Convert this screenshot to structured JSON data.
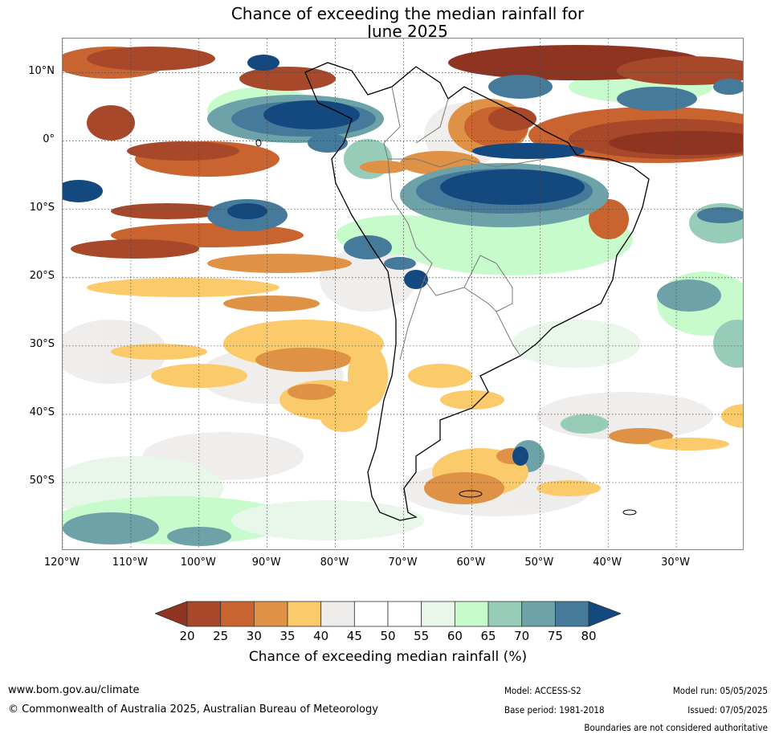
{
  "title": {
    "line1": "Chance of exceeding the median rainfall for",
    "line2": "June 2025"
  },
  "map": {
    "lat_labels": [
      {
        "text": "10°N",
        "lat": 10
      },
      {
        "text": "0°",
        "lat": 0
      },
      {
        "text": "10°S",
        "lat": -10
      },
      {
        "text": "20°S",
        "lat": -20
      },
      {
        "text": "30°S",
        "lat": -30
      },
      {
        "text": "40°S",
        "lat": -40
      },
      {
        "text": "50°S",
        "lat": -50
      }
    ],
    "lon_labels": [
      {
        "text": "120°W",
        "lon": -120
      },
      {
        "text": "110°W",
        "lon": -110
      },
      {
        "text": "100°W",
        "lon": -100
      },
      {
        "text": "90°W",
        "lon": -90
      },
      {
        "text": "80°W",
        "lon": -80
      },
      {
        "text": "70°W",
        "lon": -70
      },
      {
        "text": "60°W",
        "lon": -60
      },
      {
        "text": "50°W",
        "lon": -50
      },
      {
        "text": "40°W",
        "lon": -40
      },
      {
        "text": "30°W",
        "lon": -30
      }
    ],
    "extent": {
      "lon_min": -120,
      "lon_max": -20,
      "lat_min": -60,
      "lat_max": 15
    }
  },
  "colorbar": {
    "label": "Chance of exceeding median rainfall (%)",
    "ticks": [
      "20",
      "25",
      "30",
      "35",
      "40",
      "45",
      "50",
      "55",
      "60",
      "65",
      "70",
      "75",
      "80"
    ],
    "under_color": "#8e3420",
    "over_color": "#13497f",
    "colors": [
      "#a8482a",
      "#c9632f",
      "#df9145",
      "#fbcb6b",
      "#eeecea",
      "#ffffff",
      "#ffffff",
      "#e9f6ea",
      "#c8fbcb",
      "#97cdb8",
      "#6da3a8",
      "#457a9b"
    ]
  },
  "footer": {
    "website": "www.bom.gov.au/climate",
    "copyright": "© Commonwealth of Australia 2025, Australian Bureau of Meteorology",
    "model": "Model: ACCESS-S2",
    "base_period": "Base period: 1981-2018",
    "model_run": "Model run: 05/05/2025",
    "issued": "Issued: 07/05/2025",
    "disclaimer": "Boundaries are not considered authoritative"
  }
}
